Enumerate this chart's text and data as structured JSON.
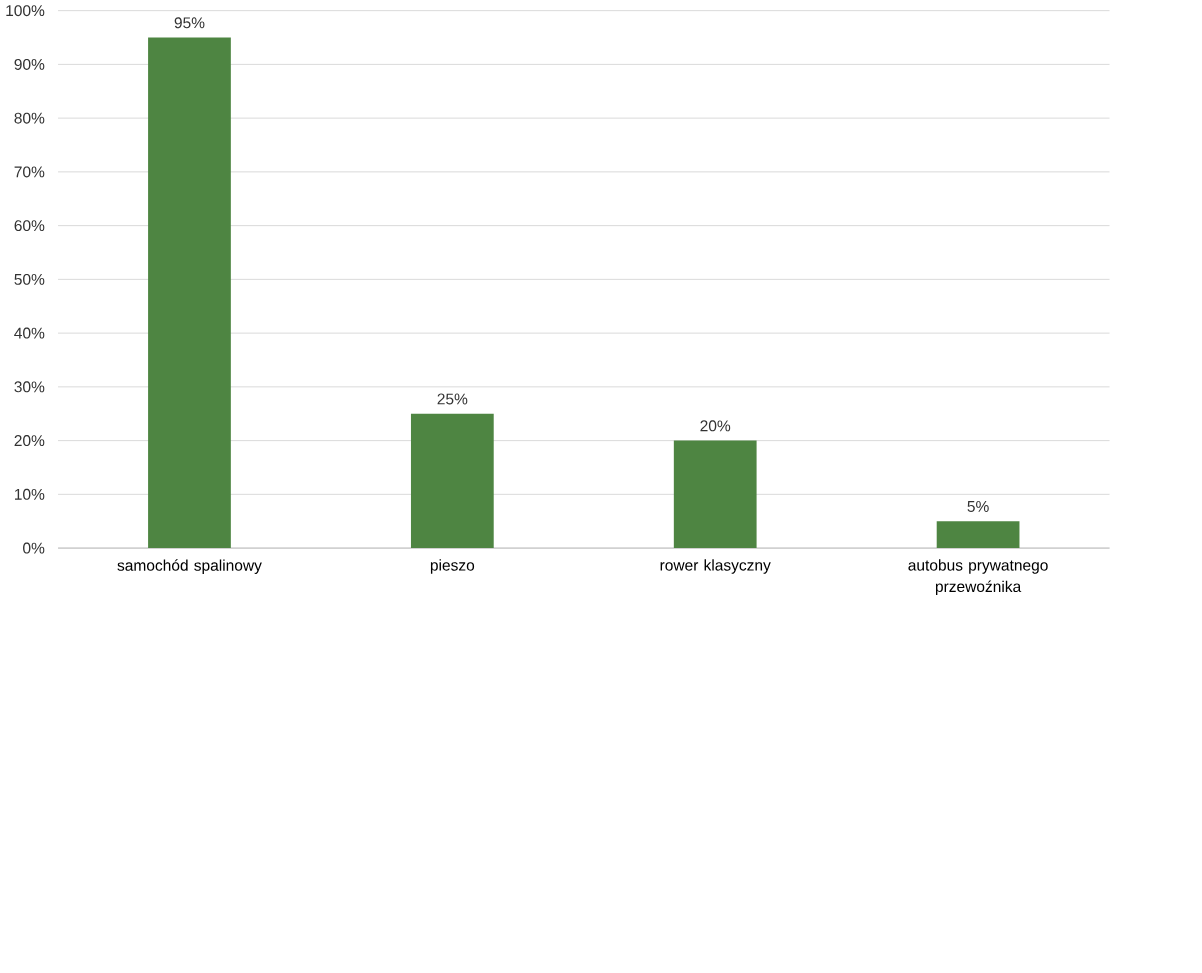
{
  "chart_data": {
    "type": "bar",
    "categories": [
      "samochód spalinowy",
      "pieszo",
      "rower klasyczny",
      "autobus prywatnego przewoźnika"
    ],
    "values": [
      95,
      25,
      20,
      5
    ],
    "value_labels": [
      "95%",
      "25%",
      "20%",
      "5%"
    ],
    "color": "#4e8542",
    "ylim": [
      0,
      100
    ],
    "yticks": [
      {
        "value": 0,
        "label": "0%"
      },
      {
        "value": 10,
        "label": "10%"
      },
      {
        "value": 20,
        "label": "20%"
      },
      {
        "value": 30,
        "label": "30%"
      },
      {
        "value": 40,
        "label": "40%"
      },
      {
        "value": 50,
        "label": "50%"
      },
      {
        "value": 60,
        "label": "60%"
      },
      {
        "value": 70,
        "label": "70%"
      },
      {
        "value": 80,
        "label": "80%"
      },
      {
        "value": 90,
        "label": "90%"
      },
      {
        "value": 100,
        "label": "100%"
      }
    ],
    "grid": "y"
  }
}
